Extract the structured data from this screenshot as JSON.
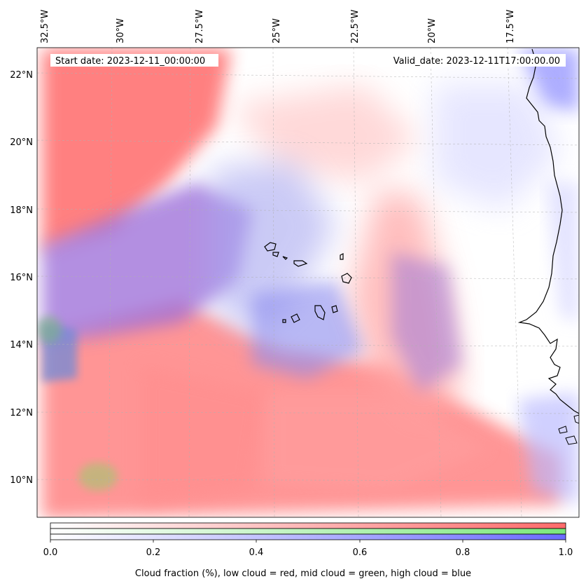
{
  "map": {
    "start_date_label": "Start date: 2023-12-11_00:00:00",
    "valid_date_label": "Valid_date: 2023-12-11T17:00:00.00",
    "lon_ticks": [
      "32.5°W",
      "30°W",
      "27.5°W",
      "25°W",
      "22.5°W",
      "20°W",
      "17.5°W"
    ],
    "lat_ticks": [
      "22°N",
      "20°N",
      "18°N",
      "16°N",
      "14°N",
      "12°N",
      "10°N"
    ]
  },
  "colorbar": {
    "ticks": [
      "0.0",
      "0.2",
      "0.4",
      "0.6",
      "0.8",
      "1.0"
    ],
    "label": "Cloud fraction (%), low cloud = red, mid cloud = green, high cloud = blue",
    "colors": {
      "low": "#ff6b6b",
      "mid": "#7be87b",
      "high": "#6b6bff"
    }
  }
}
